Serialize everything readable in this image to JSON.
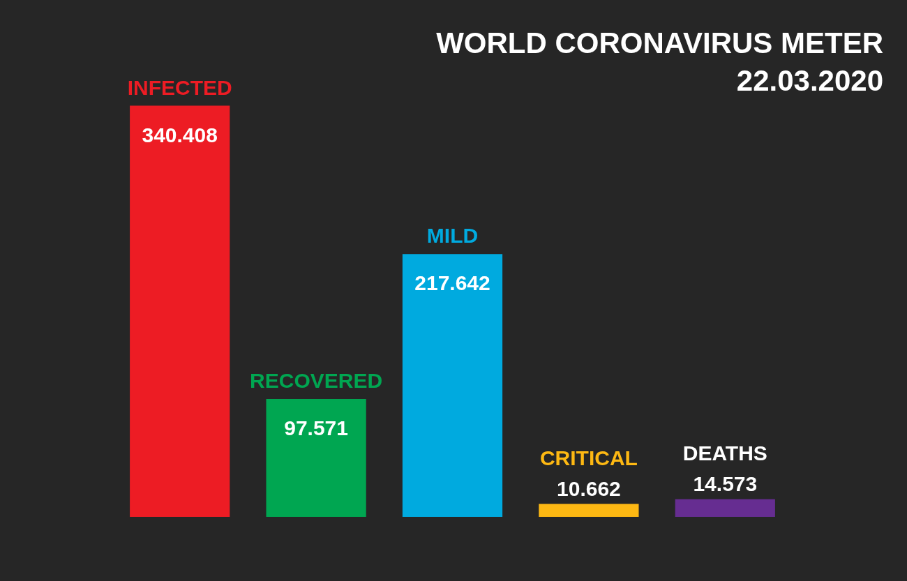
{
  "chart_data": {
    "type": "bar",
    "title": "WORLD CORONAVIRUS METER",
    "subtitle": "22.03.2020",
    "categories": [
      "INFECTED",
      "RECOVERED",
      "MILD",
      "CRITICAL",
      "DEATHS"
    ],
    "values": [
      340408,
      97571,
      217642,
      10662,
      14573
    ],
    "colors": [
      "#ed1c24",
      "#00a651",
      "#00aadf",
      "#fdb813",
      "#662d91"
    ],
    "value_labels": [
      "340.408",
      "97.571",
      "217.642",
      "10.662",
      "14.573"
    ]
  }
}
